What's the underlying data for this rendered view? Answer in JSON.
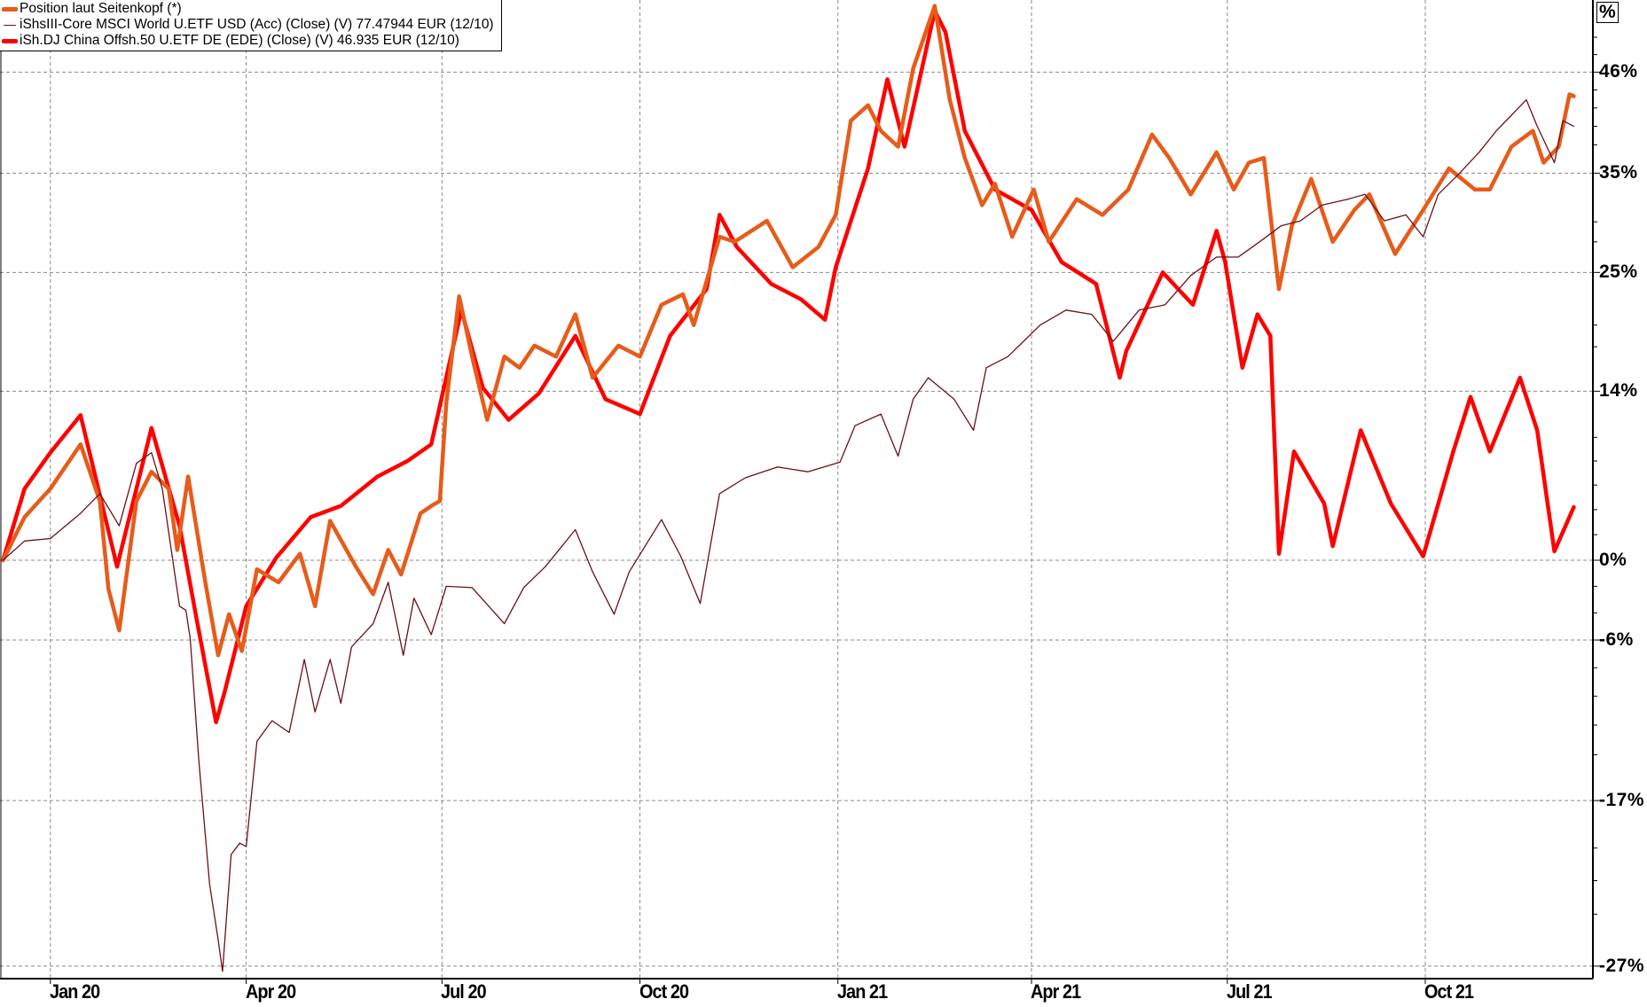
{
  "legend": [
    {
      "label": "Position laut Seitenkopf (*)",
      "color": "#e65c1a",
      "weight": "thick"
    },
    {
      "label": "iShsIII-Core MSCI World U.ETF USD (Acc) (Close) (V) 77.47944 EUR (12/10)",
      "color": "#6b0f1a",
      "weight": "thin"
    },
    {
      "label": "iSh.DJ China Offsh.50 U.ETF DE (EDE) (Close) (V) 46.935 EUR (12/10)",
      "color": "#ff0000",
      "weight": "thick"
    }
  ],
  "chart_data": {
    "type": "line",
    "y_unit_label": "%",
    "y_scale": "log (relative performance)",
    "ylim": [
      -27,
      54
    ],
    "y_ticks": [
      46,
      35,
      25,
      14,
      0,
      -6,
      -17,
      -27
    ],
    "y_tick_labels": [
      "46%",
      "35%",
      "25%",
      "14%",
      "0%",
      "-6%",
      "-17%",
      "-27%"
    ],
    "x_range": [
      "2019-12-10",
      "2021-12-09"
    ],
    "x_ticks": [
      "2020-01-01",
      "2020-04-01",
      "2020-07-01",
      "2020-10-01",
      "2021-01-01",
      "2021-04-01",
      "2021-07-01",
      "2021-10-01"
    ],
    "x_tick_labels": [
      "Jan 20",
      "Apr 20",
      "Jul 20",
      "Oct 20",
      "Jan 21",
      "Apr 21",
      "Jul 21",
      "Oct 21"
    ],
    "grid": true,
    "legend_position": "top-left",
    "series": [
      {
        "name": "iShsIII-Core MSCI World U.ETF USD (Acc) (Close) (V) 77.47944 EUR (12/10)",
        "color": "#6b0f1a",
        "points": [
          [
            "2019-12-10",
            0
          ],
          [
            "2019-12-20",
            1.5
          ],
          [
            "2020-01-01",
            1.7
          ],
          [
            "2020-01-15",
            3.7
          ],
          [
            "2020-01-24",
            5.3
          ],
          [
            "2020-02-02",
            2.7
          ],
          [
            "2020-02-10",
            7.8
          ],
          [
            "2020-02-17",
            8.7
          ],
          [
            "2020-02-22",
            5.7
          ],
          [
            "2020-03-01",
            -3.5
          ],
          [
            "2020-03-04",
            -3.8
          ],
          [
            "2020-03-06",
            -5.9
          ],
          [
            "2020-03-10",
            -14.4
          ],
          [
            "2020-03-15",
            -22.2
          ],
          [
            "2020-03-19",
            -25.5
          ],
          [
            "2020-03-21",
            -27.3
          ],
          [
            "2020-03-25",
            -20.4
          ],
          [
            "2020-03-29",
            -19.7
          ],
          [
            "2020-04-01",
            -19.9
          ],
          [
            "2020-04-06",
            -13.1
          ],
          [
            "2020-04-13",
            -11.7
          ],
          [
            "2020-04-21",
            -12.5
          ],
          [
            "2020-04-28",
            -7.4
          ],
          [
            "2020-05-03",
            -11.1
          ],
          [
            "2020-05-10",
            -7.4
          ],
          [
            "2020-05-15",
            -10.5
          ],
          [
            "2020-05-20",
            -6.5
          ],
          [
            "2020-05-30",
            -4.8
          ],
          [
            "2020-06-06",
            -1.7
          ],
          [
            "2020-06-13",
            -7.1
          ],
          [
            "2020-06-18",
            -2.9
          ],
          [
            "2020-06-26",
            -5.6
          ],
          [
            "2020-07-03",
            -2.0
          ],
          [
            "2020-07-15",
            -2.1
          ],
          [
            "2020-07-30",
            -4.8
          ],
          [
            "2020-08-08",
            -2.1
          ],
          [
            "2020-08-18",
            -0.5
          ],
          [
            "2020-09-01",
            2.4
          ],
          [
            "2020-09-09",
            -0.9
          ],
          [
            "2020-09-19",
            -4.1
          ],
          [
            "2020-09-26",
            -0.9
          ],
          [
            "2020-10-11",
            3.2
          ],
          [
            "2020-10-20",
            0.3
          ],
          [
            "2020-10-29",
            -3.3
          ],
          [
            "2020-11-07",
            5.3
          ],
          [
            "2020-11-19",
            6.6
          ],
          [
            "2020-12-04",
            7.5
          ],
          [
            "2020-12-18",
            7.1
          ],
          [
            "2021-01-02",
            7.9
          ],
          [
            "2021-01-09",
            11.0
          ],
          [
            "2021-01-21",
            12.0
          ],
          [
            "2021-01-29",
            8.4
          ],
          [
            "2021-02-05",
            13.3
          ],
          [
            "2021-02-12",
            15.2
          ],
          [
            "2021-02-24",
            13.3
          ],
          [
            "2021-03-05",
            10.6
          ],
          [
            "2021-03-11",
            16.1
          ],
          [
            "2021-03-21",
            17.1
          ],
          [
            "2021-04-05",
            20.0
          ],
          [
            "2021-04-17",
            21.4
          ],
          [
            "2021-04-29",
            21.0
          ],
          [
            "2021-05-09",
            18.5
          ],
          [
            "2021-05-21",
            21.4
          ],
          [
            "2021-06-02",
            21.9
          ],
          [
            "2021-06-14",
            24.7
          ],
          [
            "2021-06-26",
            26.5
          ],
          [
            "2021-07-06",
            26.5
          ],
          [
            "2021-07-16",
            28.0
          ],
          [
            "2021-07-26",
            29.6
          ],
          [
            "2021-08-04",
            30.1
          ],
          [
            "2021-08-14",
            31.7
          ],
          [
            "2021-08-26",
            32.3
          ],
          [
            "2021-09-03",
            32.8
          ],
          [
            "2021-09-12",
            30.1
          ],
          [
            "2021-09-22",
            30.7
          ],
          [
            "2021-09-30",
            28.5
          ],
          [
            "2021-10-07",
            32.8
          ],
          [
            "2021-10-17",
            35.0
          ],
          [
            "2021-10-26",
            37.2
          ],
          [
            "2021-11-03",
            39.5
          ],
          [
            "2021-11-10",
            41.2
          ],
          [
            "2021-11-17",
            42.9
          ],
          [
            "2021-11-22",
            40.0
          ],
          [
            "2021-11-30",
            36.1
          ],
          [
            "2021-12-04",
            40.6
          ],
          [
            "2021-12-09",
            40.0
          ]
        ]
      },
      {
        "name": "iSh.DJ China Offsh.50 U.ETF DE (EDE) (Close) (V) 46.935 EUR (12/10)",
        "color": "#ff0000",
        "points": [
          [
            "2019-12-10",
            0
          ],
          [
            "2019-12-20",
            5.7
          ],
          [
            "2020-01-01",
            8.7
          ],
          [
            "2020-01-15",
            11.9
          ],
          [
            "2020-02-01",
            -0.5
          ],
          [
            "2020-02-17",
            10.8
          ],
          [
            "2020-03-01",
            2.7
          ],
          [
            "2020-03-09",
            -4.5
          ],
          [
            "2020-03-18",
            -11.8
          ],
          [
            "2020-03-22",
            -9.7
          ],
          [
            "2020-04-01",
            -3.5
          ],
          [
            "2020-04-15",
            0.2
          ],
          [
            "2020-05-01",
            3.4
          ],
          [
            "2020-05-15",
            4.3
          ],
          [
            "2020-06-01",
            6.7
          ],
          [
            "2020-06-15",
            8.0
          ],
          [
            "2020-06-26",
            9.4
          ],
          [
            "2020-07-10",
            21.4
          ],
          [
            "2020-07-20",
            14.3
          ],
          [
            "2020-08-01",
            11.5
          ],
          [
            "2020-08-15",
            13.8
          ],
          [
            "2020-09-01",
            19.0
          ],
          [
            "2020-09-15",
            13.3
          ],
          [
            "2020-10-01",
            12.0
          ],
          [
            "2020-10-15",
            19.0
          ],
          [
            "2020-11-01",
            23.4
          ],
          [
            "2020-11-07",
            30.7
          ],
          [
            "2020-11-15",
            27.5
          ],
          [
            "2020-12-01",
            23.9
          ],
          [
            "2020-12-15",
            22.4
          ],
          [
            "2020-12-26",
            20.5
          ],
          [
            "2020-12-31",
            25.5
          ],
          [
            "2021-01-15",
            35.5
          ],
          [
            "2021-01-24",
            45.2
          ],
          [
            "2021-02-01",
            37.8
          ],
          [
            "2021-02-15",
            53.1
          ],
          [
            "2021-02-20",
            50.6
          ],
          [
            "2021-03-01",
            39.5
          ],
          [
            "2021-03-15",
            33.3
          ],
          [
            "2021-04-01",
            31.2
          ],
          [
            "2021-04-15",
            26.0
          ],
          [
            "2021-05-01",
            23.9
          ],
          [
            "2021-05-12",
            15.2
          ],
          [
            "2021-05-15",
            17.6
          ],
          [
            "2021-06-01",
            25.0
          ],
          [
            "2021-06-15",
            21.9
          ],
          [
            "2021-06-26",
            29.1
          ],
          [
            "2021-06-30",
            26.0
          ],
          [
            "2021-07-08",
            16.1
          ],
          [
            "2021-07-15",
            21.0
          ],
          [
            "2021-07-21",
            19.0
          ],
          [
            "2021-07-25",
            0.5
          ],
          [
            "2021-08-01",
            8.8
          ],
          [
            "2021-08-15",
            4.5
          ],
          [
            "2021-08-19",
            1.1
          ],
          [
            "2021-09-01",
            10.6
          ],
          [
            "2021-09-15",
            4.5
          ],
          [
            "2021-09-30",
            0.3
          ],
          [
            "2021-10-14",
            8.8
          ],
          [
            "2021-10-22",
            13.5
          ],
          [
            "2021-10-31",
            8.8
          ],
          [
            "2021-11-14",
            15.2
          ],
          [
            "2021-11-22",
            10.6
          ],
          [
            "2021-11-30",
            0.7
          ],
          [
            "2021-12-09",
            4.2
          ]
        ]
      },
      {
        "name": "Position laut Seitenkopf (*)",
        "color": "#e65c1a",
        "points": [
          [
            "2019-12-10",
            0
          ],
          [
            "2019-12-20",
            3.4
          ],
          [
            "2020-01-01",
            5.7
          ],
          [
            "2020-01-15",
            9.4
          ],
          [
            "2020-01-24",
            4.7
          ],
          [
            "2020-01-28",
            -2.2
          ],
          [
            "2020-02-02",
            -5.3
          ],
          [
            "2020-02-10",
            4.7
          ],
          [
            "2020-02-17",
            7.1
          ],
          [
            "2020-02-25",
            5.7
          ],
          [
            "2020-02-29",
            0.8
          ],
          [
            "2020-03-05",
            6.7
          ],
          [
            "2020-03-13",
            -1.7
          ],
          [
            "2020-03-19",
            -7.1
          ],
          [
            "2020-03-24",
            -4.1
          ],
          [
            "2020-03-30",
            -6.8
          ],
          [
            "2020-04-06",
            -0.7
          ],
          [
            "2020-04-16",
            -1.7
          ],
          [
            "2020-04-26",
            0.5
          ],
          [
            "2020-05-03",
            -3.5
          ],
          [
            "2020-05-10",
            3.1
          ],
          [
            "2020-05-22",
            -0.5
          ],
          [
            "2020-05-30",
            -2.6
          ],
          [
            "2020-06-06",
            0.8
          ],
          [
            "2020-06-12",
            -1.1
          ],
          [
            "2020-06-21",
            3.7
          ],
          [
            "2020-06-27",
            4.4
          ],
          [
            "2020-06-30",
            4.7
          ],
          [
            "2020-07-03",
            13.0
          ],
          [
            "2020-07-09",
            22.7
          ],
          [
            "2020-07-15",
            17.1
          ],
          [
            "2020-07-22",
            11.5
          ],
          [
            "2020-07-30",
            17.1
          ],
          [
            "2020-08-06",
            16.1
          ],
          [
            "2020-08-13",
            18.1
          ],
          [
            "2020-08-23",
            17.1
          ],
          [
            "2020-09-01",
            21.0
          ],
          [
            "2020-09-09",
            15.2
          ],
          [
            "2020-09-21",
            18.1
          ],
          [
            "2020-10-01",
            17.1
          ],
          [
            "2020-10-11",
            21.9
          ],
          [
            "2020-10-21",
            22.9
          ],
          [
            "2020-10-26",
            20.0
          ],
          [
            "2020-11-02",
            24.9
          ],
          [
            "2020-11-07",
            28.5
          ],
          [
            "2020-11-14",
            28.0
          ],
          [
            "2020-11-29",
            30.1
          ],
          [
            "2020-12-11",
            25.5
          ],
          [
            "2020-12-23",
            27.5
          ],
          [
            "2020-12-31",
            30.7
          ],
          [
            "2021-01-07",
            40.6
          ],
          [
            "2021-01-15",
            42.3
          ],
          [
            "2021-01-21",
            39.5
          ],
          [
            "2021-01-29",
            37.8
          ],
          [
            "2021-02-05",
            46.4
          ],
          [
            "2021-02-15",
            53.7
          ],
          [
            "2021-02-22",
            42.9
          ],
          [
            "2021-03-01",
            36.6
          ],
          [
            "2021-03-09",
            31.7
          ],
          [
            "2021-03-15",
            33.9
          ],
          [
            "2021-03-23",
            28.5
          ],
          [
            "2021-04-02",
            33.3
          ],
          [
            "2021-04-09",
            28.0
          ],
          [
            "2021-04-22",
            32.3
          ],
          [
            "2021-05-04",
            30.7
          ],
          [
            "2021-05-16",
            33.3
          ],
          [
            "2021-05-27",
            39.1
          ],
          [
            "2021-06-04",
            36.6
          ],
          [
            "2021-06-14",
            32.8
          ],
          [
            "2021-06-26",
            37.2
          ],
          [
            "2021-07-04",
            33.3
          ],
          [
            "2021-07-11",
            36.1
          ],
          [
            "2021-07-18",
            36.6
          ],
          [
            "2021-07-25",
            23.4
          ],
          [
            "2021-07-31",
            29.6
          ],
          [
            "2021-08-09",
            34.4
          ],
          [
            "2021-08-19",
            28.0
          ],
          [
            "2021-08-29",
            31.2
          ],
          [
            "2021-09-05",
            32.8
          ],
          [
            "2021-09-17",
            26.8
          ],
          [
            "2021-09-30",
            31.2
          ],
          [
            "2021-10-12",
            35.5
          ],
          [
            "2021-10-24",
            33.3
          ],
          [
            "2021-10-31",
            33.3
          ],
          [
            "2021-11-10",
            37.8
          ],
          [
            "2021-11-20",
            39.5
          ],
          [
            "2021-11-25",
            36.1
          ],
          [
            "2021-12-02",
            37.8
          ],
          [
            "2021-12-07",
            43.5
          ],
          [
            "2021-12-09",
            43.3
          ]
        ]
      }
    ]
  }
}
